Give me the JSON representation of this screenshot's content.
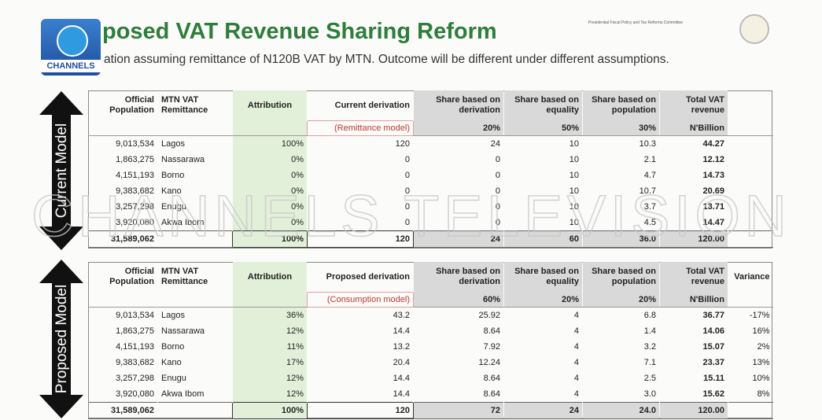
{
  "header": {
    "title": "posed VAT Revenue Sharing Reform",
    "subtitle": "ation assuming remittance of N120B VAT by MTN. Outcome will be different under different assumptions.",
    "committee": "Presidential Fiscal Policy and Tax Reforms Committee",
    "logo": "CHANNELS"
  },
  "watermark": "CHANNELS TELEVISION",
  "tables": [
    {
      "side_label": "Current Model",
      "columns": [
        "Official Population",
        "MTN VAT Remittance",
        "Attribution",
        "Current derivation",
        "Share based on derivation",
        "Share based on equality",
        "Share based on population",
        "Total VAT revenue",
        null
      ],
      "subheader": [
        null,
        null,
        null,
        "(Remittance model)",
        "20%",
        "50%",
        "30%",
        "N'Billion",
        null
      ],
      "rows": [
        [
          "9,013,534",
          "Lagos",
          "100%",
          "120",
          "24",
          "10",
          "10.3",
          "44.27",
          null
        ],
        [
          "1,863,275",
          "Nassarawa",
          "0%",
          "0",
          "0",
          "10",
          "2.1",
          "12.12",
          null
        ],
        [
          "4,151,193",
          "Borno",
          "0%",
          "0",
          "0",
          "10",
          "4.7",
          "14.73",
          null
        ],
        [
          "9,383,682",
          "Kano",
          "0%",
          "0",
          "0",
          "10",
          "10.7",
          "20.69",
          null
        ],
        [
          "3,257,298",
          "Enugu",
          "0%",
          "0",
          "0",
          "10",
          "3.7",
          "13.71",
          null
        ],
        [
          "3,920,080",
          "Akwa Ibom",
          "0%",
          "0",
          "0",
          "10",
          "4.5",
          "14.47",
          null
        ]
      ],
      "total": [
        "31,589,062",
        null,
        "100%",
        "120",
        "24",
        "60",
        "36.0",
        "120.00",
        null
      ]
    },
    {
      "side_label": "Proposed Model",
      "columns": [
        "Official Population",
        "MTN VAT Remittance",
        "Attribution",
        "Proposed derivation",
        "Share based on derivation",
        "Share based on equality",
        "Share based on population",
        "Total VAT revenue",
        "Variance"
      ],
      "subheader": [
        null,
        null,
        null,
        "(Consumption model)",
        "60%",
        "20%",
        "20%",
        "N'Billion",
        null
      ],
      "rows": [
        [
          "9,013,534",
          "Lagos",
          "36%",
          "43.2",
          "25.92",
          "4",
          "6.8",
          "36.77",
          "-17%"
        ],
        [
          "1,863,275",
          "Nassarawa",
          "12%",
          "14.4",
          "8.64",
          "4",
          "1.4",
          "14.06",
          "16%"
        ],
        [
          "4,151,193",
          "Borno",
          "11%",
          "13.2",
          "7.92",
          "4",
          "3.2",
          "15.07",
          "2%"
        ],
        [
          "9,383,682",
          "Kano",
          "17%",
          "20.4",
          "12.24",
          "4",
          "7.1",
          "23.37",
          "13%"
        ],
        [
          "3,257,298",
          "Enugu",
          "12%",
          "14.4",
          "8.64",
          "4",
          "2.5",
          "15.11",
          "10%"
        ],
        [
          "3,920,080",
          "Akwa Ibom",
          "12%",
          "14.4",
          "8.64",
          "4",
          "3.0",
          "15.62",
          "8%"
        ]
      ],
      "total": [
        "31,589,062",
        null,
        "100%",
        "120",
        "72",
        "24",
        "24.0",
        "120.00",
        null
      ]
    }
  ]
}
